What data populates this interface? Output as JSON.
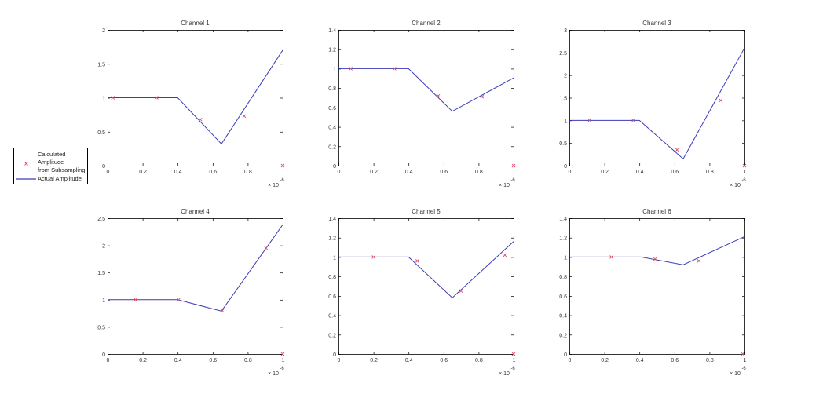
{
  "figure": {
    "background": "#ffffff",
    "line_color": "#3b3bb5",
    "marker_color": "#e0506a",
    "axis_color": "#000000",
    "tick_label_color": "#333333"
  },
  "legend": {
    "entries": [
      {
        "label_lines": [
          "Calculated",
          "Amplitude",
          "from Subsampling"
        ],
        "symbol": "x-marker",
        "color": "#e0506a"
      },
      {
        "label_lines": [
          "Actual Amplitude"
        ],
        "symbol": "line",
        "color": "#3b3bb5"
      }
    ]
  },
  "chart_data": [
    {
      "type": "line",
      "title": "Channel 1",
      "xlabel": "",
      "ylabel": "",
      "x_multiplier_label": "× 10",
      "x_multiplier_exp": "-6",
      "xlim": [
        0,
        1
      ],
      "ylim": [
        0,
        2
      ],
      "xticks": [
        0,
        0.2,
        0.4,
        0.6,
        0.8,
        1
      ],
      "xtick_labels": [
        "0",
        "0.2",
        "0.4",
        "0.6",
        "0.8",
        "1"
      ],
      "yticks": [
        0,
        0.5,
        1,
        1.5,
        2
      ],
      "ytick_labels": [
        "0",
        "0.5",
        "1",
        "1.5",
        "2"
      ],
      "grid": false,
      "series": [
        {
          "name": "Actual Amplitude",
          "style": "line",
          "x": [
            0,
            0.4,
            0.65,
            1.0
          ],
          "y": [
            1.0,
            1.0,
            0.32,
            1.7
          ]
        },
        {
          "name": "Calculated Amplitude from Subsampling",
          "style": "x-marker",
          "x": [
            0.03,
            0.28,
            0.53,
            0.78,
            1.0
          ],
          "y": [
            1.0,
            1.0,
            0.68,
            0.73,
            0.0
          ]
        }
      ]
    },
    {
      "type": "line",
      "title": "Channel 2",
      "xlabel": "",
      "ylabel": "",
      "x_multiplier_label": "× 10",
      "x_multiplier_exp": "-6",
      "xlim": [
        0,
        1
      ],
      "ylim": [
        0,
        1.4
      ],
      "xticks": [
        0,
        0.2,
        0.4,
        0.6,
        0.8,
        1
      ],
      "xtick_labels": [
        "0",
        "0.2",
        "0.4",
        "0.6",
        "0.8",
        "1"
      ],
      "yticks": [
        0,
        0.2,
        0.4,
        0.6,
        0.8,
        1,
        1.2,
        1.4
      ],
      "ytick_labels": [
        "0",
        "0.2",
        "0.4",
        "0.6",
        "0.8",
        "1",
        "1.2",
        "1.4"
      ],
      "grid": false,
      "series": [
        {
          "name": "Actual Amplitude",
          "style": "line",
          "x": [
            0,
            0.4,
            0.65,
            1.0
          ],
          "y": [
            1.0,
            1.0,
            0.56,
            0.905
          ]
        },
        {
          "name": "Calculated Amplitude from Subsampling",
          "style": "x-marker",
          "x": [
            0.07,
            0.32,
            0.57,
            0.82,
            1.0
          ],
          "y": [
            1.0,
            1.0,
            0.72,
            0.71,
            0.0
          ]
        }
      ]
    },
    {
      "type": "line",
      "title": "Channel 3",
      "xlabel": "",
      "ylabel": "",
      "x_multiplier_label": "× 10",
      "x_multiplier_exp": "-6",
      "xlim": [
        0,
        1
      ],
      "ylim": [
        0,
        3
      ],
      "xticks": [
        0,
        0.2,
        0.4,
        0.6,
        0.8,
        1
      ],
      "xtick_labels": [
        "0",
        "0.2",
        "0.4",
        "0.6",
        "0.8",
        "1"
      ],
      "yticks": [
        0,
        0.5,
        1,
        1.5,
        2,
        2.5,
        3
      ],
      "ytick_labels": [
        "0",
        "0.5",
        "1",
        "1.5",
        "2",
        "2.5",
        "3"
      ],
      "grid": false,
      "series": [
        {
          "name": "Actual Amplitude",
          "style": "line",
          "x": [
            0,
            0.4,
            0.65,
            1.0
          ],
          "y": [
            1.0,
            1.0,
            0.15,
            2.6
          ]
        },
        {
          "name": "Calculated Amplitude from Subsampling",
          "style": "x-marker",
          "x": [
            0.115,
            0.365,
            0.615,
            0.865,
            1.0
          ],
          "y": [
            1.0,
            1.0,
            0.35,
            1.44,
            0.0
          ]
        }
      ]
    },
    {
      "type": "line",
      "title": "Channel 4",
      "xlabel": "",
      "ylabel": "",
      "x_multiplier_label": "× 10",
      "x_multiplier_exp": "-6",
      "xlim": [
        0,
        1
      ],
      "ylim": [
        0,
        2.5
      ],
      "xticks": [
        0,
        0.2,
        0.4,
        0.6,
        0.8,
        1
      ],
      "xtick_labels": [
        "0",
        "0.2",
        "0.4",
        "0.6",
        "0.8",
        "1"
      ],
      "yticks": [
        0,
        0.5,
        1,
        1.5,
        2,
        2.5
      ],
      "ytick_labels": [
        "0",
        "0.5",
        "1",
        "1.5",
        "2",
        "2.5"
      ],
      "grid": false,
      "series": [
        {
          "name": "Actual Amplitude",
          "style": "line",
          "x": [
            0,
            0.4,
            0.65,
            1.0
          ],
          "y": [
            1.0,
            1.0,
            0.79,
            2.38
          ]
        },
        {
          "name": "Calculated Amplitude from Subsampling",
          "style": "x-marker",
          "x": [
            0.16,
            0.405,
            0.655,
            0.905,
            1.0
          ],
          "y": [
            1.0,
            1.0,
            0.8,
            1.95,
            0.0
          ]
        }
      ]
    },
    {
      "type": "line",
      "title": "Channel 5",
      "xlabel": "",
      "ylabel": "",
      "x_multiplier_label": "× 10",
      "x_multiplier_exp": "-6",
      "xlim": [
        0,
        1
      ],
      "ylim": [
        0,
        1.4
      ],
      "xticks": [
        0,
        0.2,
        0.4,
        0.6,
        0.8,
        1
      ],
      "xtick_labels": [
        "0",
        "0.2",
        "0.4",
        "0.6",
        "0.8",
        "1"
      ],
      "yticks": [
        0,
        0.2,
        0.4,
        0.6,
        0.8,
        1,
        1.2,
        1.4
      ],
      "ytick_labels": [
        "0",
        "0.2",
        "0.4",
        "0.6",
        "0.8",
        "1",
        "1.2",
        "1.4"
      ],
      "grid": false,
      "series": [
        {
          "name": "Actual Amplitude",
          "style": "line",
          "x": [
            0,
            0.4,
            0.65,
            1.0
          ],
          "y": [
            1.0,
            1.0,
            0.58,
            1.16
          ]
        },
        {
          "name": "Calculated Amplitude from Subsampling",
          "style": "x-marker",
          "x": [
            0.2,
            0.45,
            0.7,
            0.95,
            1.0
          ],
          "y": [
            1.0,
            0.96,
            0.65,
            1.02,
            0.0
          ]
        }
      ]
    },
    {
      "type": "line",
      "title": "Channel 6",
      "xlabel": "",
      "ylabel": "",
      "x_multiplier_label": "× 10",
      "x_multiplier_exp": "-6",
      "xlim": [
        0,
        1
      ],
      "ylim": [
        0,
        1.4
      ],
      "xticks": [
        0,
        0.2,
        0.4,
        0.6,
        0.8,
        1
      ],
      "xtick_labels": [
        "0",
        "0.2",
        "0.4",
        "0.6",
        "0.8",
        "1"
      ],
      "yticks": [
        0,
        0.2,
        0.4,
        0.6,
        0.8,
        1,
        1.2,
        1.4
      ],
      "ytick_labels": [
        "0",
        "0.2",
        "0.4",
        "0.6",
        "0.8",
        "1",
        "1.2",
        "1.4"
      ],
      "grid": false,
      "series": [
        {
          "name": "Actual Amplitude",
          "style": "line",
          "x": [
            0,
            0.41,
            0.65,
            1.0
          ],
          "y": [
            1.0,
            1.0,
            0.92,
            1.21
          ]
        },
        {
          "name": "Calculated Amplitude from Subsampling",
          "style": "x-marker",
          "x": [
            0.24,
            0.49,
            0.74,
            0.99
          ],
          "y": [
            1.0,
            0.98,
            0.96,
            0.0
          ]
        }
      ]
    }
  ]
}
